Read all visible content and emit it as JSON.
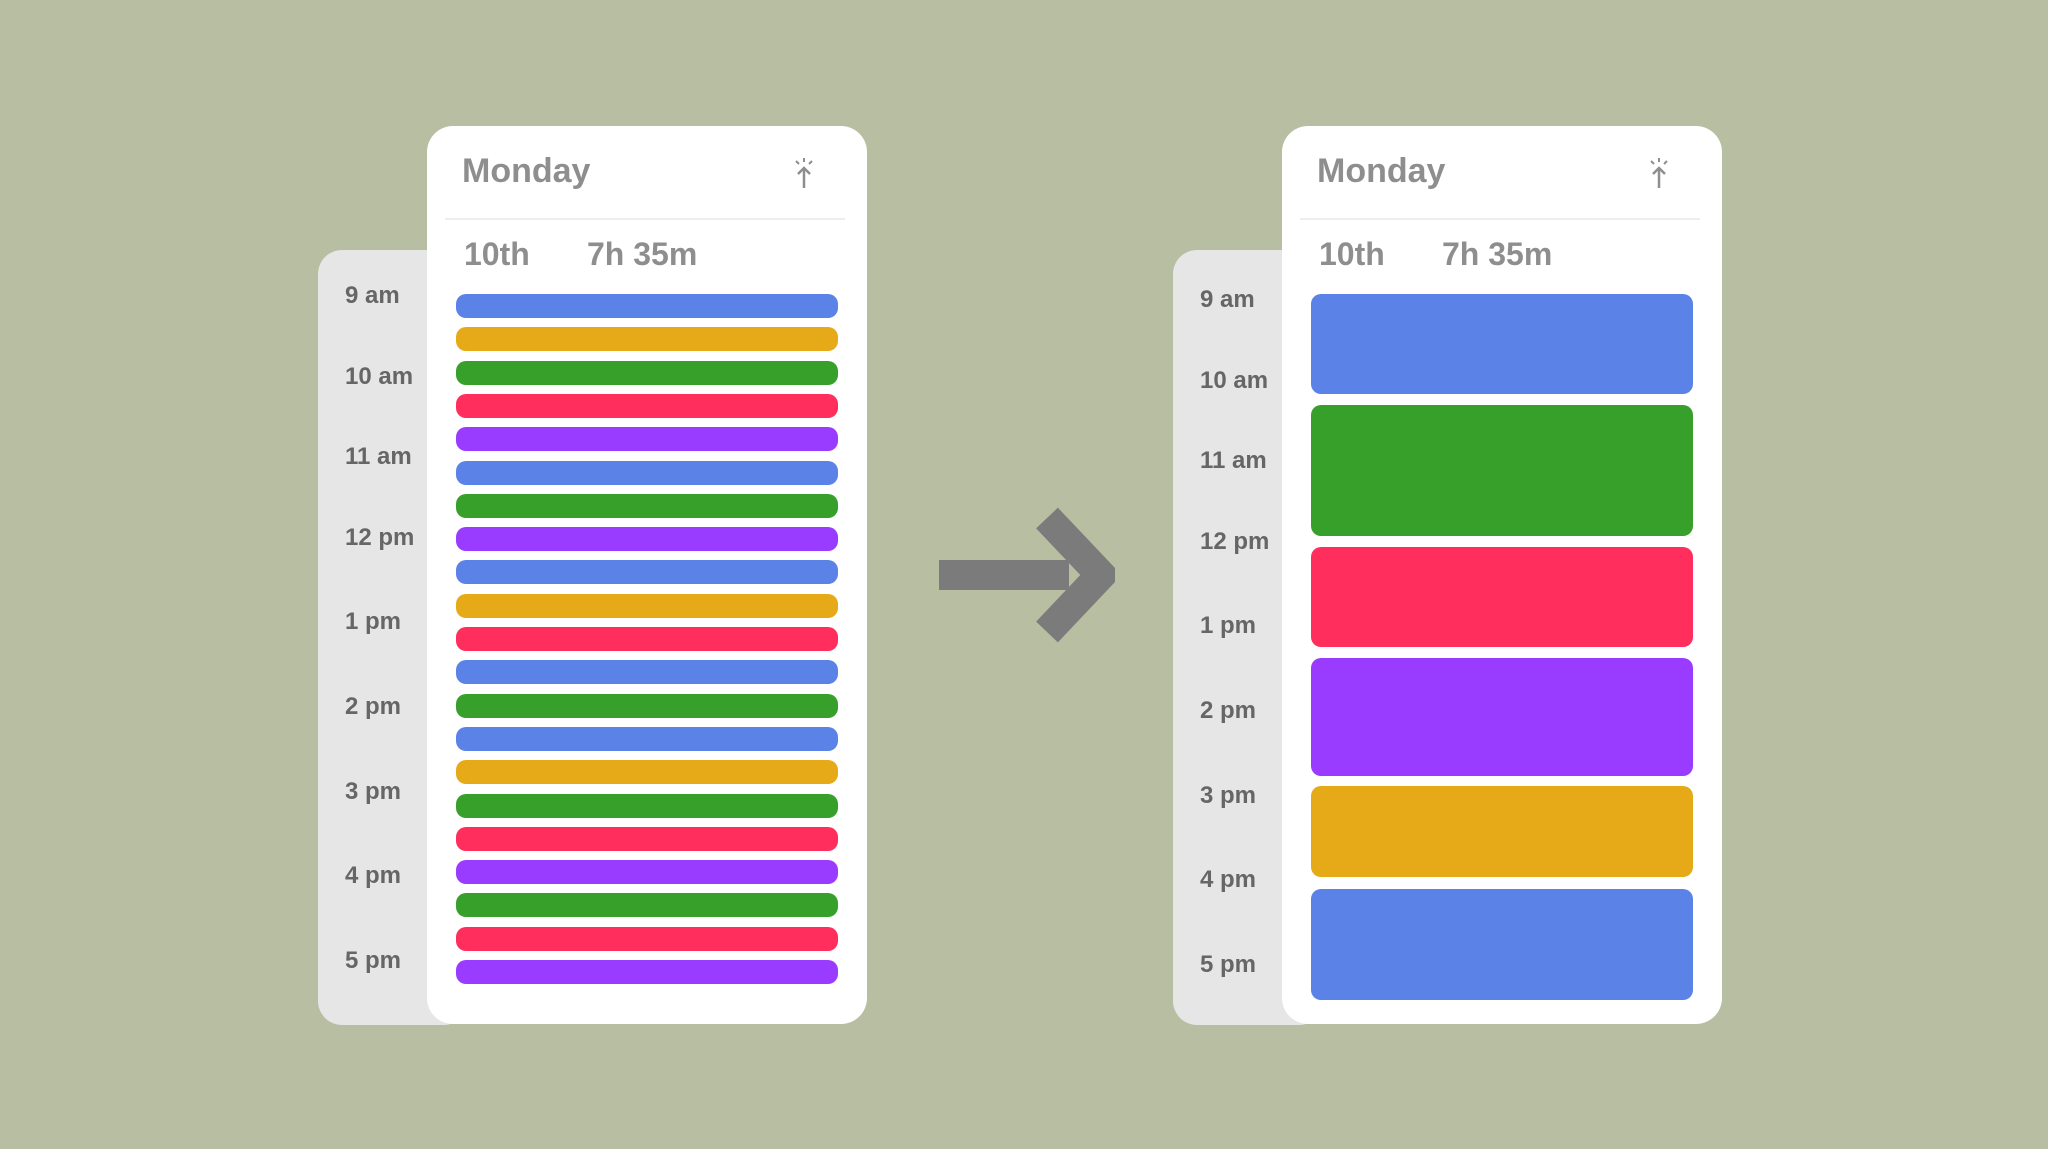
{
  "colors": {
    "background": "#b8bea2",
    "blue": "#5b82e6",
    "yellow": "#e6aa18",
    "green": "#37a02a",
    "red": "#ff2e5c",
    "purple": "#9a3cff",
    "arrow": "#7b7b7b"
  },
  "before": {
    "day": "Monday",
    "date": "10th",
    "duration": "7h 35m",
    "times": [
      "9 am",
      "10 am",
      "11 am",
      "12 pm",
      "1 pm",
      "2 pm",
      "3 pm",
      "4 pm",
      "5 pm"
    ],
    "events": [
      "blue",
      "yellow",
      "green",
      "red",
      "purple",
      "blue",
      "green",
      "purple",
      "blue",
      "yellow",
      "red",
      "blue",
      "green",
      "blue",
      "yellow",
      "green",
      "red",
      "purple",
      "green",
      "red",
      "purple"
    ]
  },
  "after": {
    "day": "Monday",
    "date": "10th",
    "duration": "7h 35m",
    "times": [
      "9 am",
      "10 am",
      "11 am",
      "12 pm",
      "1 pm",
      "2 pm",
      "3 pm",
      "4 pm",
      "5 pm"
    ],
    "events": [
      "blue",
      "green",
      "red",
      "purple",
      "yellow",
      "blue"
    ]
  }
}
